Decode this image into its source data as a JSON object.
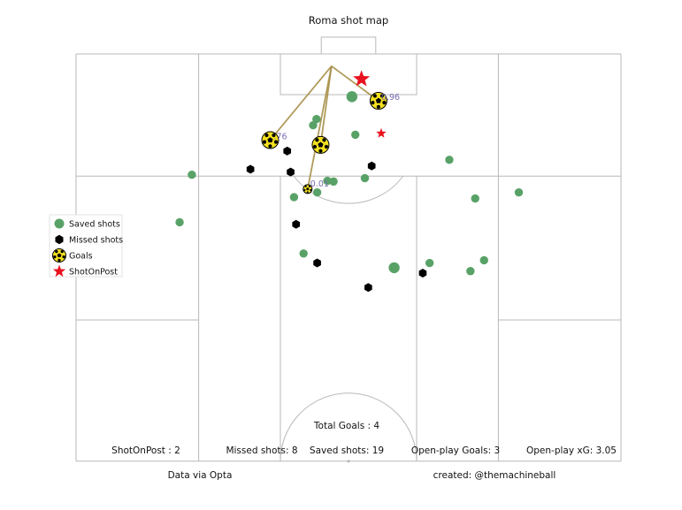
{
  "chart_data": {
    "type": "scatter",
    "title": "Roma shot map",
    "legend": {
      "placement": "left",
      "entries": [
        {
          "key": "saved",
          "label": "Saved shots"
        },
        {
          "key": "missed",
          "label": "Missed shots"
        },
        {
          "key": "goals",
          "label": "Goals"
        },
        {
          "key": "post",
          "label": "ShotOnPost"
        }
      ]
    },
    "colors": {
      "saved": "#59a267",
      "missed": "#000000",
      "goal_ball": "#f4e11e",
      "post": "#e8131f",
      "assist_line": "#a8914a",
      "xg_label": "#7a6cb0",
      "pitch_line": "#b8b8b8"
    },
    "pitch": {
      "x_range": [
        0,
        120
      ],
      "y_range": [
        0,
        80
      ],
      "vertical": true,
      "half": "attacking"
    },
    "series": [
      {
        "key": "saved",
        "points": [
          {
            "x": 113.7,
            "y": 40.5,
            "size": "l"
          },
          {
            "x": 110.4,
            "y": 35.3
          },
          {
            "x": 109.5,
            "y": 34.8
          },
          {
            "x": 108.1,
            "y": 41.0
          },
          {
            "x": 104.4,
            "y": 54.8
          },
          {
            "x": 101.7,
            "y": 42.4
          },
          {
            "x": 101.3,
            "y": 36.9
          },
          {
            "x": 101.2,
            "y": 37.8
          },
          {
            "x": 99.6,
            "y": 35.4
          },
          {
            "x": 99.6,
            "y": 65.0
          },
          {
            "x": 98.9,
            "y": 32.0
          },
          {
            "x": 98.7,
            "y": 58.6
          },
          {
            "x": 102.2,
            "y": 17.0
          },
          {
            "x": 95.2,
            "y": 15.2
          },
          {
            "x": 90.6,
            "y": 33.4
          },
          {
            "x": 88.5,
            "y": 46.7,
            "size": "l"
          },
          {
            "x": 89.2,
            "y": 51.9
          },
          {
            "x": 88.0,
            "y": 57.9
          },
          {
            "x": 89.6,
            "y": 59.9
          }
        ]
      },
      {
        "key": "missed",
        "points": [
          {
            "x": 105.7,
            "y": 31.0
          },
          {
            "x": 102.6,
            "y": 31.5
          },
          {
            "x": 103.0,
            "y": 25.6
          },
          {
            "x": 103.5,
            "y": 43.4
          },
          {
            "x": 94.9,
            "y": 32.3
          },
          {
            "x": 89.2,
            "y": 35.4
          },
          {
            "x": 87.7,
            "y": 50.9
          },
          {
            "x": 85.6,
            "y": 42.9
          }
        ]
      },
      {
        "key": "goals",
        "points": [
          {
            "x": 113.1,
            "y": 44.4,
            "xg": "0.96",
            "assist_from": {
              "x": 118.2,
              "y": 37.5
            }
          },
          {
            "x": 107.3,
            "y": 28.5,
            "xg": ".76",
            "assist_from": {
              "x": 118.2,
              "y": 37.5
            }
          },
          {
            "x": 106.6,
            "y": 35.9,
            "xg": "",
            "assist_from": {
              "x": 118.2,
              "y": 37.5
            }
          },
          {
            "x": 100.1,
            "y": 34.0,
            "xg": "0.01",
            "assist_from": {
              "x": 118.2,
              "y": 37.5
            }
          }
        ]
      },
      {
        "key": "post",
        "points": [
          {
            "x": 116.3,
            "y": 41.9,
            "size": "l"
          },
          {
            "x": 108.3,
            "y": 44.8
          }
        ]
      }
    ],
    "stats": {
      "total_goals": "Total Goals : 4",
      "shot_on_post": "ShotOnPost : 2",
      "missed_shots": "Missed shots: 8",
      "saved_shots": "Saved shots: 19",
      "open_play_goals": "Open-play Goals: 3",
      "open_play_xg": "Open-play xG: 3.05"
    },
    "credits": {
      "source": "Data via Opta",
      "created": "created: @themachineball"
    }
  }
}
